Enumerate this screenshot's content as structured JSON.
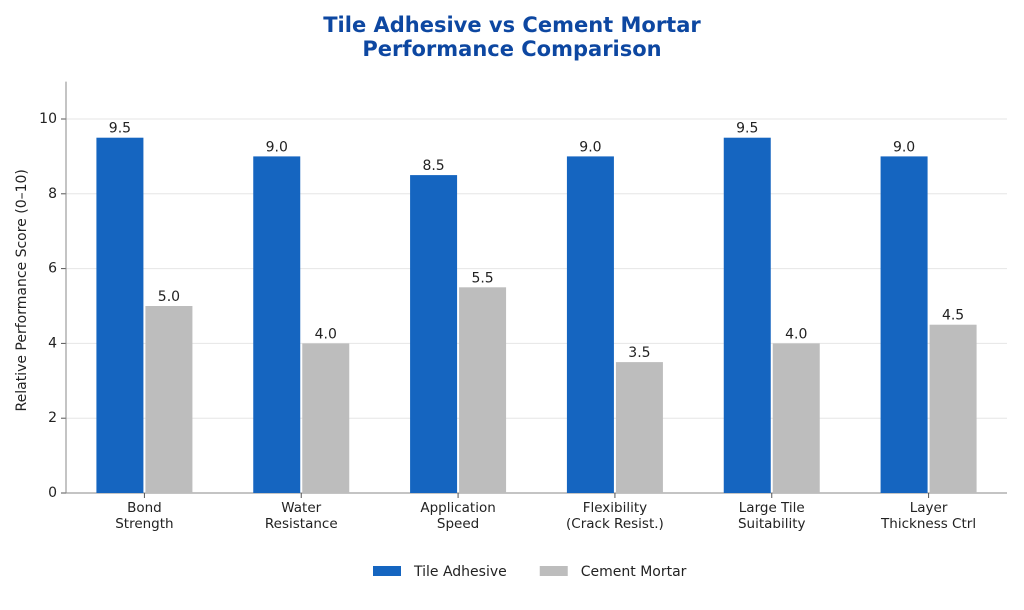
{
  "chart_data": {
    "type": "bar",
    "title": "Tile Adhesive vs Cement Mortar\nPerformance Comparison",
    "y_label": "Relative Performance Score (0–10)",
    "categories": [
      "Bond\nStrength",
      "Water\nResistance",
      "Application\nSpeed",
      "Flexibility\n(Crack Resist.)",
      "Large Tile\nSuitability",
      "Layer\nThickness Ctrl"
    ],
    "series": [
      {
        "name": "Tile Adhesive",
        "color": "#1565c0",
        "values": [
          9.5,
          9,
          8.5,
          9,
          9.5,
          9
        ],
        "value_labels": [
          "9.5",
          "9.0",
          "8.5",
          "9.0",
          "9.5",
          "9.0"
        ]
      },
      {
        "name": "Cement Mortar",
        "color": "#bdbdbd",
        "values": [
          5,
          4,
          5.5,
          3.5,
          4,
          4.5
        ],
        "value_labels": [
          "5.0",
          "4.0",
          "5.5",
          "3.5",
          "4.0",
          "4.5"
        ]
      }
    ],
    "ylim": [
      0,
      11
    ],
    "yticks": [
      0,
      2,
      4,
      6,
      8,
      10
    ],
    "grid": true,
    "legend": "bottom"
  }
}
